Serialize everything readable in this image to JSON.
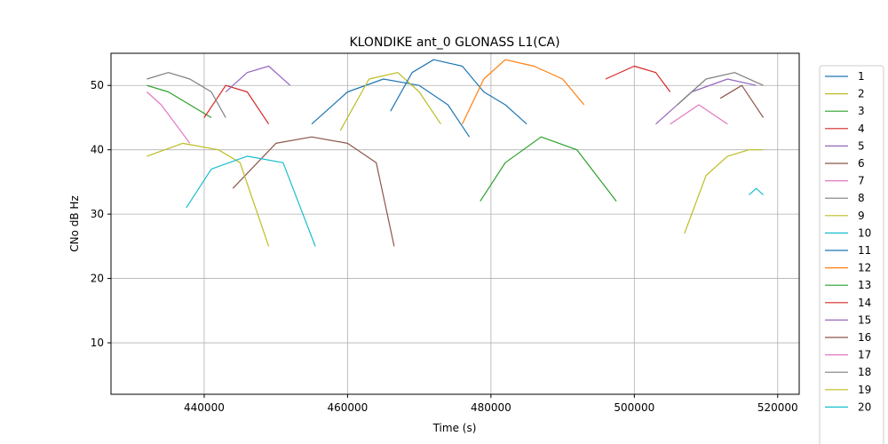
{
  "chart_data": {
    "type": "line",
    "title": "KLONDIKE ant_0 GLONASS L1(CA)",
    "xlabel": "Time (s)",
    "ylabel": "CNo dB Hz",
    "xlim": [
      427000,
      523000
    ],
    "ylim": [
      2,
      55
    ],
    "xticks": [
      440000,
      460000,
      480000,
      500000,
      520000
    ],
    "xtick_labels": [
      "440000",
      "460000",
      "480000",
      "500000",
      "520000"
    ],
    "yticks": [
      10,
      20,
      30,
      40,
      50
    ],
    "ytick_labels": [
      "10",
      "20",
      "30",
      "40",
      "50"
    ],
    "grid": true,
    "legend_position": "outside-right",
    "series": [
      {
        "name": "1",
        "color": "#1f77b4",
        "x": [
          455000,
          460000,
          465000,
          470000,
          474000,
          477000
        ],
        "y": [
          44,
          49,
          51,
          50,
          47,
          42
        ]
      },
      {
        "name": "2",
        "color": "#bcbd22",
        "x": [
          459000,
          463000,
          467000,
          470000,
          473000
        ],
        "y": [
          43,
          51,
          52,
          49,
          44
        ]
      },
      {
        "name": "3",
        "color": "#2ca02c",
        "x": [
          432000,
          435000,
          438000,
          441000
        ],
        "y": [
          50,
          49,
          47,
          45
        ]
      },
      {
        "name": "4",
        "color": "#d62728",
        "x": [
          440000,
          443000,
          446000,
          449000
        ],
        "y": [
          45,
          50,
          49,
          44
        ]
      },
      {
        "name": "5",
        "color": "#9467bd",
        "x": [
          443000,
          446000,
          449000,
          452000
        ],
        "y": [
          49,
          52,
          53,
          50
        ]
      },
      {
        "name": "6",
        "color": "#8c564b",
        "x": [
          444000,
          450000,
          455000,
          460000,
          464000,
          466500
        ],
        "y": [
          34,
          41,
          42,
          41,
          38,
          25
        ]
      },
      {
        "name": "7",
        "color": "#e377c2",
        "x": [
          432000,
          434000,
          436000,
          438000
        ],
        "y": [
          49,
          47,
          44,
          41
        ]
      },
      {
        "name": "8",
        "color": "#7f7f7f",
        "x": [
          432000,
          435000,
          438000,
          441000,
          443000
        ],
        "y": [
          51,
          52,
          51,
          49,
          45
        ]
      },
      {
        "name": "9",
        "color": "#bcbd22",
        "x": [
          432000,
          437000,
          442000,
          445000,
          449000
        ],
        "y": [
          39,
          41,
          40,
          38,
          25
        ]
      },
      {
        "name": "10",
        "color": "#17becf",
        "x": [
          437500,
          441000,
          446000,
          451000,
          455500
        ],
        "y": [
          31,
          37,
          39,
          38,
          25
        ]
      },
      {
        "name": "11",
        "color": "#1f77b4",
        "x": [
          466000,
          469000,
          472000,
          476000,
          479000,
          482000,
          485000
        ],
        "y": [
          46,
          52,
          54,
          53,
          49,
          47,
          44
        ]
      },
      {
        "name": "12",
        "color": "#ff7f0e",
        "x": [
          476000,
          479000,
          482000,
          486000,
          490000,
          493000
        ],
        "y": [
          44,
          51,
          54,
          53,
          51,
          47
        ]
      },
      {
        "name": "13",
        "color": "#2ca02c",
        "x": [
          478500,
          482000,
          487000,
          492000,
          497500
        ],
        "y": [
          32,
          38,
          42,
          40,
          32
        ]
      },
      {
        "name": "14",
        "color": "#d62728",
        "x": [
          496000,
          500000,
          503000,
          505000
        ],
        "y": [
          51,
          53,
          52,
          49
        ]
      },
      {
        "name": "15",
        "color": "#9467bd",
        "x": [
          503000,
          508000,
          513000,
          517000
        ],
        "y": [
          44,
          49,
          51,
          50
        ]
      },
      {
        "name": "16",
        "color": "#8c564b",
        "x": [
          512000,
          515000,
          518000
        ],
        "y": [
          48,
          50,
          45
        ]
      },
      {
        "name": "17",
        "color": "#e377c2",
        "x": [
          505000,
          509000,
          513000
        ],
        "y": [
          44,
          47,
          44
        ]
      },
      {
        "name": "18",
        "color": "#7f7f7f",
        "x": [
          506000,
          510000,
          514000,
          518000
        ],
        "y": [
          47,
          51,
          52,
          50
        ]
      },
      {
        "name": "19",
        "color": "#bcbd22",
        "x": [
          507000,
          510000,
          513000,
          516000,
          518000
        ],
        "y": [
          27,
          36,
          39,
          40,
          40
        ]
      },
      {
        "name": "20",
        "color": "#17becf",
        "x": [
          516000,
          517000,
          518000
        ],
        "y": [
          33,
          34,
          33
        ]
      }
    ]
  }
}
